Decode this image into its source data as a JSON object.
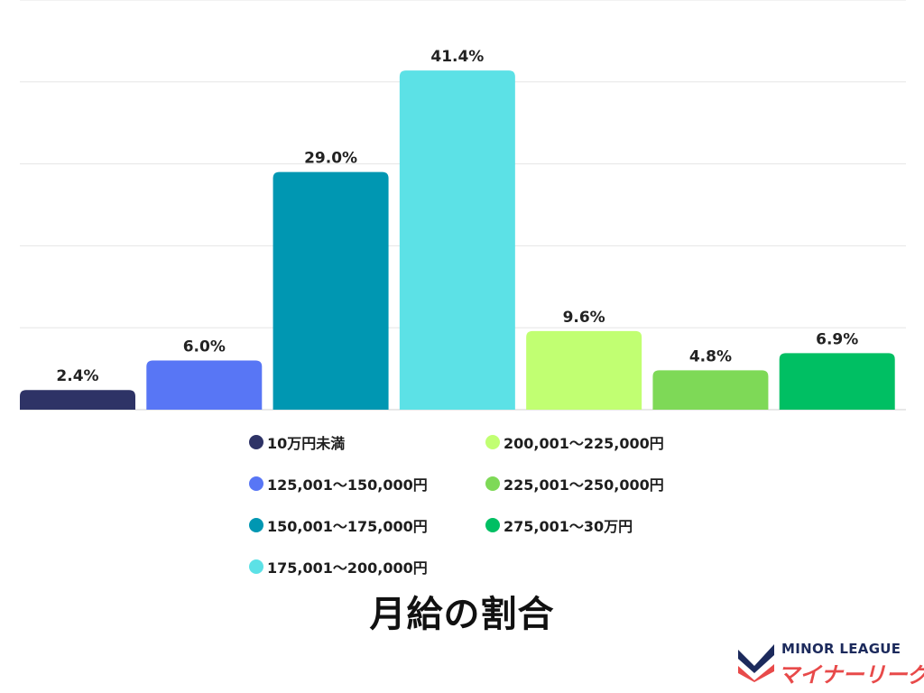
{
  "title": "月給の割合",
  "colors": {
    "grid": "#e6e6e6",
    "axis": "#d0d0d0",
    "label": "#222222"
  },
  "chart_data": {
    "type": "bar",
    "categories": [
      "10万円未満",
      "125,001～150,000円",
      "150,001～175,000円",
      "175,001～200,000円",
      "200,001～225,000円",
      "225,001～250,000円",
      "275,001～30万円"
    ],
    "values": [
      2.4,
      6.0,
      29.0,
      41.4,
      9.6,
      4.8,
      6.9
    ],
    "value_labels": [
      "2.4%",
      "6.0%",
      "29.0%",
      "41.4%",
      "9.6%",
      "4.8%",
      "6.9%"
    ],
    "colors": [
      "#2e3366",
      "#5876f5",
      "#0097b2",
      "#5ce1e6",
      "#c1ff72",
      "#7ed957",
      "#00bf63"
    ],
    "ylim": [
      0,
      50
    ],
    "grid": true,
    "legend_position": "bottom"
  },
  "logo": {
    "text_en": "MINOR LEAGUE",
    "text_ja": "マイナーリーグ"
  }
}
